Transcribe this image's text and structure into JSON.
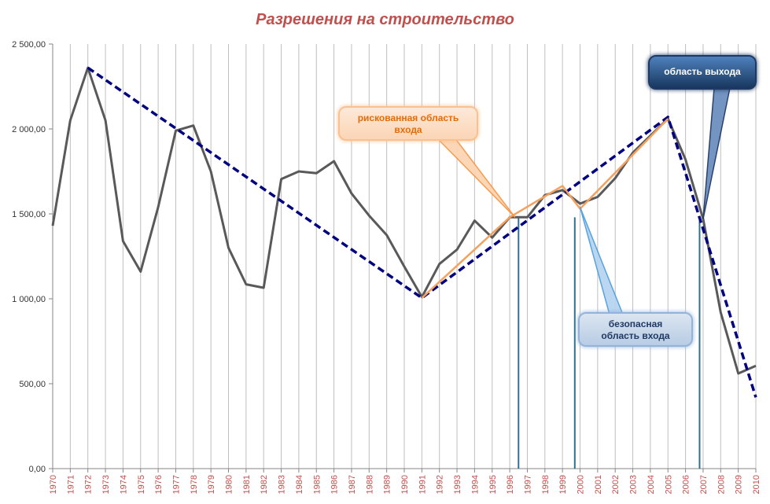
{
  "chart_data": {
    "type": "line",
    "title": "Разрешения на строительство",
    "x": [
      "1970",
      "1971",
      "1972",
      "1973",
      "1974",
      "1975",
      "1976",
      "1977",
      "1978",
      "1979",
      "1980",
      "1981",
      "1982",
      "1983",
      "1984",
      "1985",
      "1986",
      "1987",
      "1988",
      "1989",
      "1990",
      "1991",
      "1992",
      "1993",
      "1994",
      "1995",
      "1996",
      "1997",
      "1998",
      "1999",
      "2000",
      "2001",
      "2002",
      "2003",
      "2004",
      "2005",
      "2006",
      "2007",
      "2008",
      "2009",
      "2010"
    ],
    "y_tick_labels": [
      "0,00",
      "500,00",
      "1 000,00",
      "1 500,00",
      "2 000,00",
      "2 500,00"
    ],
    "ylim": [
      0,
      2500
    ],
    "grid": "vertical",
    "series": [
      {
        "values": [
          1430,
          2050,
          2360,
          2050,
          1340,
          1160,
          1540,
          1990,
          2020,
          1750,
          1300,
          1085,
          1065,
          1705,
          1750,
          1740,
          1810,
          1620,
          1490,
          1375,
          1190,
          1010,
          1205,
          1290,
          1460,
          1360,
          1480,
          1480,
          1610,
          1640,
          1560,
          1600,
          1710,
          1860,
          1960,
          2060,
          1820,
          1470,
          920,
          560,
          605
        ],
        "color": "#595959"
      }
    ],
    "trendlines": [
      {
        "points": [
          [
            "1972",
            2360
          ],
          [
            "1991",
            1005
          ],
          [
            "2005",
            2070
          ],
          [
            "2010",
            420
          ]
        ],
        "color": "#000080",
        "style": "dashed"
      },
      {
        "points": [
          [
            "1991",
            1005
          ],
          [
            "1996",
            1480
          ],
          [
            "1999",
            1665
          ],
          [
            "2000",
            1530
          ],
          [
            "2005",
            2060
          ]
        ],
        "color": "#f4a15d",
        "style": "solid"
      }
    ],
    "markers": [
      {
        "year_position": 1996.5,
        "color": "#31708f"
      },
      {
        "year_position": 1999.7,
        "color": "#31708f"
      },
      {
        "year_position": 2006.8,
        "color": "#31708f"
      }
    ],
    "annotations": [
      {
        "text_lines": [
          "рискованная область",
          "входа"
        ],
        "style": "orange",
        "points_to": [
          1996.3,
          1480
        ]
      },
      {
        "text_lines": [
          "безопасная",
          "область входа"
        ],
        "style": "light-blue",
        "points_to": [
          2000,
          1540
        ]
      },
      {
        "text_lines": [
          "область выхода"
        ],
        "style": "dark-blue",
        "points_to": [
          2007,
          1470
        ]
      }
    ]
  },
  "colors": {
    "title": "#c0504d",
    "x_ticks": "#c0504d",
    "gridlines": "#bfbfbf",
    "axis": "#868686"
  }
}
